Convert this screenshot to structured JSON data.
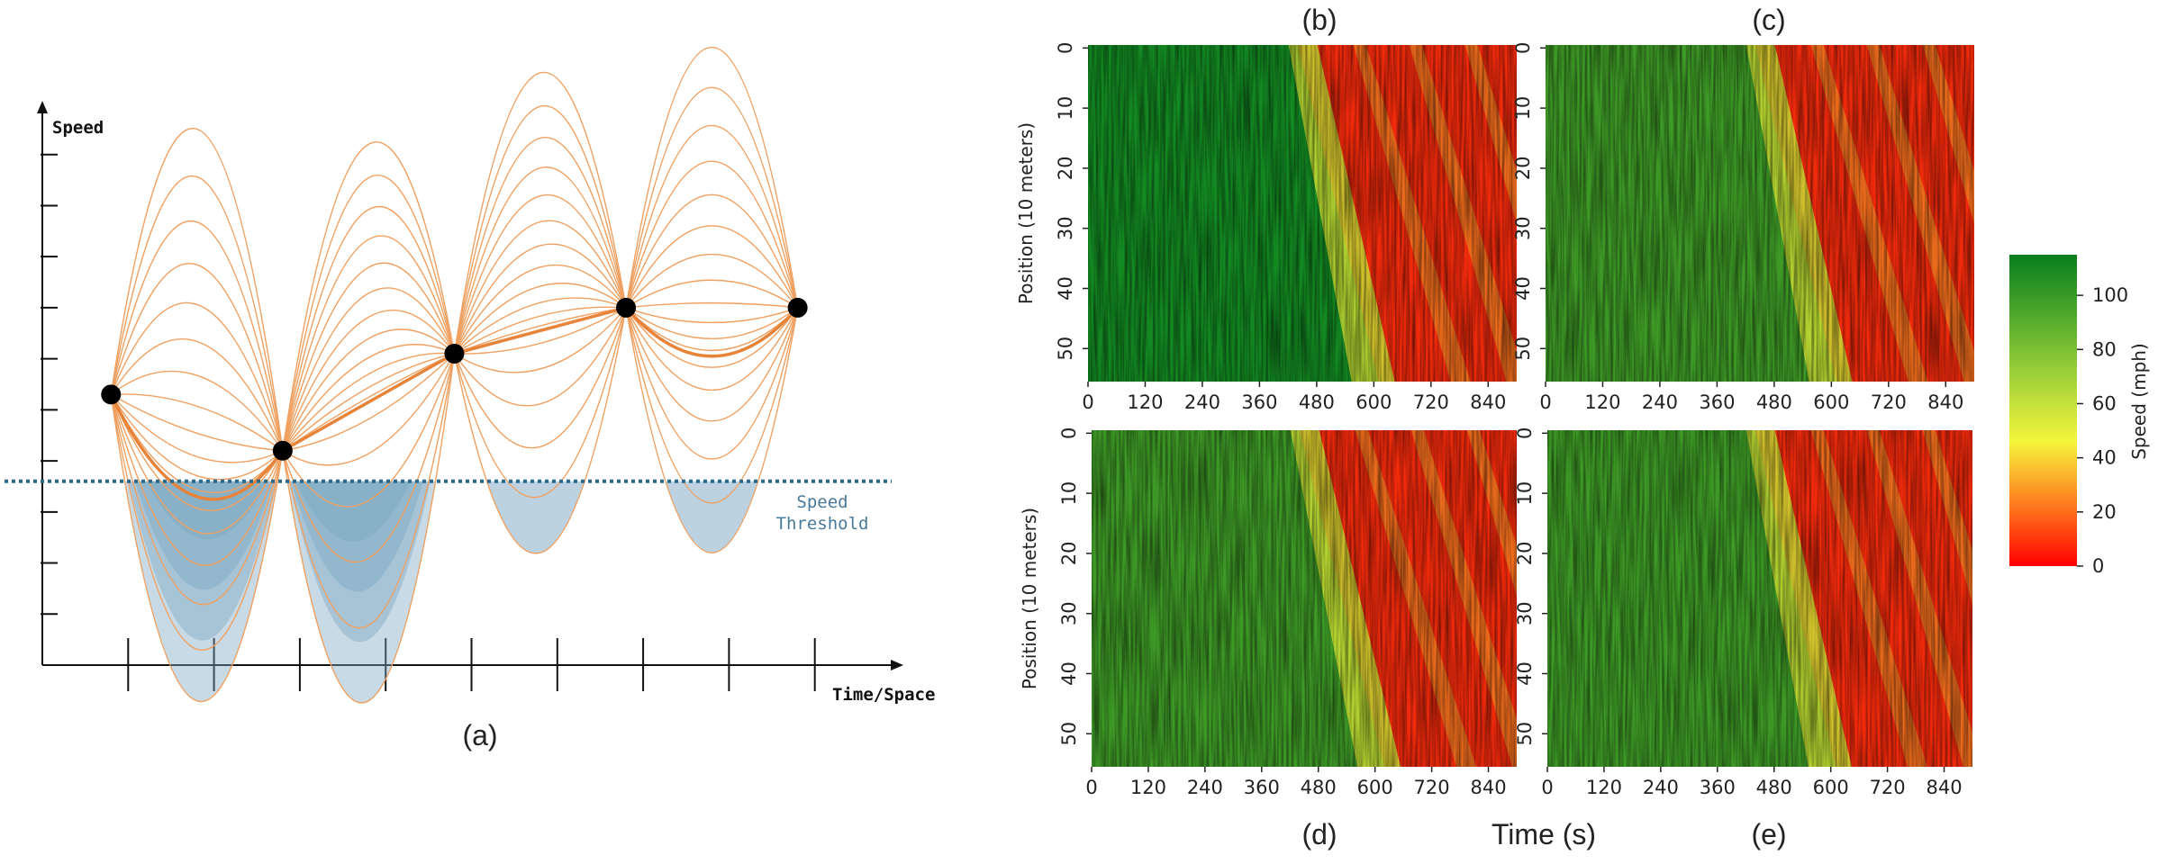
{
  "figure": {
    "panel_a_caption": "(a)",
    "panel_b_caption": "(b)",
    "panel_c_caption": "(c)",
    "panel_d_caption": "(d)",
    "panel_e_caption": "(e)",
    "shared_xlabel": "Time (s)"
  },
  "chart_data": [
    {
      "type": "line",
      "panel": "(a)",
      "title": "",
      "xlabel": "Time/Space",
      "ylabel": "Speed",
      "annotation": "Speed\nThreshold",
      "annotation_lines": [
        "Speed",
        "Threshold"
      ],
      "xlim": [
        0,
        10
      ],
      "ylim": [
        0,
        11
      ],
      "x_ticks": 9,
      "y_ticks": 10,
      "threshold": 3.6,
      "anchor_points": [
        {
          "x": 0.8,
          "y": 5.3
        },
        {
          "x": 2.8,
          "y": 4.2
        },
        {
          "x": 4.8,
          "y": 6.1
        },
        {
          "x": 6.8,
          "y": 7.0
        },
        {
          "x": 8.8,
          "y": 7.0
        }
      ],
      "mean_path_midpoints": [
        3.3,
        5.15,
        6.55,
        6.05
      ],
      "envelope_upper": [
        10.5,
        10.2,
        11.6,
        12.1
      ],
      "envelope_lower": [
        -0.7,
        -0.7,
        2.2,
        2.2
      ],
      "colors": {
        "curves": "#f0a060",
        "mean": "#e8833a",
        "shade": "#7aa6c2",
        "threshold": "#2b6a8d",
        "annotation": "#4a7a9a"
      }
    },
    {
      "type": "heatmap",
      "panels": [
        "(b)",
        "(c)",
        "(d)",
        "(e)"
      ],
      "xlabel": "Time (s)",
      "ylabel": "Position (10 meters)",
      "x_ticks": [
        0,
        120,
        240,
        360,
        480,
        600,
        720,
        840
      ],
      "x_tick_labels": [
        "0",
        "120",
        "240",
        "360",
        "480",
        "600",
        "720",
        "840"
      ],
      "y_ticks": [
        0,
        10,
        20,
        30,
        40,
        50
      ],
      "y_tick_labels": [
        "0",
        "10",
        "20",
        "30",
        "40",
        "50"
      ],
      "xlim": [
        0,
        900
      ],
      "ylim": [
        0,
        56
      ],
      "congestion_front": {
        "(b)": {
          "t_top": 440,
          "t_bottom": 610
        },
        "(c)": {
          "t_top": 440,
          "t_bottom": 610
        },
        "(d)": {
          "t_top": 440,
          "t_bottom": 620
        },
        "(e)": {
          "t_top": 440,
          "t_bottom": 610
        }
      },
      "colorbar": {
        "label": "Speed (mph)",
        "range": [
          0,
          115
        ],
        "ticks": [
          0,
          20,
          40,
          60,
          80,
          100
        ],
        "tick_labels": [
          "0",
          "20",
          "40",
          "60",
          "80",
          "100"
        ],
        "colors": [
          "#ff0000",
          "#ff6a1a",
          "#f5f53c",
          "#9ccf39",
          "#4aa62a",
          "#087d1d"
        ]
      }
    }
  ]
}
